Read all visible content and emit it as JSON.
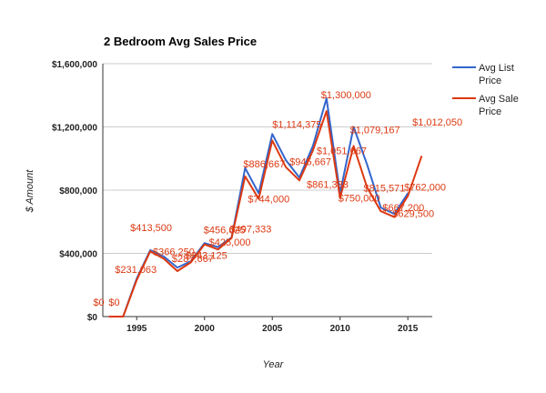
{
  "colors": {
    "list": "#3366cc",
    "sale": "#dc3912",
    "grid": "#cccccc",
    "axis": "#333333"
  },
  "chart_data": {
    "type": "line",
    "title": "2 Bedroom Avg Sales Price",
    "xlabel": "Year",
    "ylabel": "$ Amount",
    "xlim": [
      1992.5,
      2016.8
    ],
    "ylim": [
      0,
      1600000
    ],
    "x_ticks": [
      1995,
      2000,
      2005,
      2010,
      2015
    ],
    "y_ticks": [
      0,
      400000,
      800000,
      1200000,
      1600000
    ],
    "y_tick_labels": [
      "$0",
      "$400,000",
      "$800,000",
      "$1,200,000",
      "$1,600,000"
    ],
    "grid": true,
    "legend_position": "right",
    "series": [
      {
        "name": "Avg List Price",
        "color": "#3366cc",
        "x": [
          1993,
          1994,
          1995,
          1996,
          1997,
          1998,
          1999,
          2000,
          2001,
          2002,
          2003,
          2004,
          2005,
          2006,
          2007,
          2008,
          2009,
          2010,
          2011,
          2012,
          2013,
          2014,
          2015
        ],
        "values": [
          0,
          0,
          240000,
          420000,
          380000,
          310000,
          350000,
          465000,
          440000,
          500000,
          940000,
          780000,
          1155000,
          990000,
          880000,
          1080000,
          1380000,
          780000,
          1200000,
          960000,
          690000,
          650000,
          780000
        ]
      },
      {
        "name": "Avg Sale Price",
        "color": "#dc3912",
        "x": [
          1993,
          1994,
          1995,
          1996,
          1997,
          1998,
          1999,
          2000,
          2001,
          2002,
          2003,
          2004,
          2005,
          2006,
          2007,
          2008,
          2009,
          2010,
          2011,
          2012,
          2013,
          2014,
          2015,
          2016
        ],
        "values": [
          0,
          0,
          231063,
          413500,
          366250,
          287667,
          343125,
          456625,
          425000,
          497333,
          886667,
          744000,
          1114375,
          945667,
          861333,
          1051667,
          1300000,
          750000,
          1079167,
          815571,
          667200,
          629500,
          762000,
          1012050
        ]
      }
    ],
    "data_labels": [
      {
        "text": "$0",
        "x": 1993,
        "y": 0,
        "dx": -18,
        "dy": -12
      },
      {
        "text": "$0",
        "x": 1994,
        "y": 0,
        "dx": -16,
        "dy": -12
      },
      {
        "text": "$231,063",
        "x": 1995,
        "y": 231063,
        "dx": -24,
        "dy": -8
      },
      {
        "text": "$413,500",
        "x": 1996,
        "y": 413500,
        "dx": -22,
        "dy": -22
      },
      {
        "text": "$366,250",
        "x": 1997,
        "y": 366250,
        "dx": -12,
        "dy": -4
      },
      {
        "text": "$287,667",
        "x": 1998,
        "y": 287667,
        "dx": -6,
        "dy": -10
      },
      {
        "text": "$343,125",
        "x": 1999,
        "y": 343125,
        "dx": -6,
        "dy": -4
      },
      {
        "text": "$456,625",
        "x": 2000,
        "y": 456625,
        "dx": -1,
        "dy": -12
      },
      {
        "text": "$425,000",
        "x": 2001,
        "y": 425000,
        "dx": -10,
        "dy": -4
      },
      {
        "text": "$497,333",
        "x": 2002,
        "y": 497333,
        "dx": -2,
        "dy": -6
      },
      {
        "text": "$886,667",
        "x": 2003,
        "y": 886667,
        "dx": -2,
        "dy": -10
      },
      {
        "text": "$744,000",
        "x": 2004,
        "y": 744000,
        "dx": -12,
        "dy": 4
      },
      {
        "text": "$1,114,375",
        "x": 2005,
        "y": 1114375,
        "dx": 0,
        "dy": -14
      },
      {
        "text": "$945,667",
        "x": 2006,
        "y": 945667,
        "dx": 4,
        "dy": -2
      },
      {
        "text": "$861,333",
        "x": 2007,
        "y": 861333,
        "dx": 8,
        "dy": 8
      },
      {
        "text": "$1,051,667",
        "x": 2008,
        "y": 1051667,
        "dx": 4,
        "dy": 4
      },
      {
        "text": "$1,300,000",
        "x": 2009,
        "y": 1300000,
        "dx": -6,
        "dy": -14
      },
      {
        "text": "$750,000",
        "x": 2010,
        "y": 750000,
        "dx": -2,
        "dy": 4
      },
      {
        "text": "$1,079,167",
        "x": 2011,
        "y": 1079167,
        "dx": -4,
        "dy": -14
      },
      {
        "text": "$815,571",
        "x": 2012,
        "y": 815571,
        "dx": -4,
        "dy": 4
      },
      {
        "text": "$667,200",
        "x": 2013,
        "y": 667200,
        "dx": 2,
        "dy": 0
      },
      {
        "text": "$629,500",
        "x": 2014,
        "y": 629500,
        "dx": -2,
        "dy": 0
      },
      {
        "text": "$762,000",
        "x": 2015,
        "y": 762000,
        "dx": -4,
        "dy": -6
      },
      {
        "text": "$1,012,050",
        "x": 2016,
        "y": 1012050,
        "dx": -10,
        "dy": -34
      }
    ]
  }
}
